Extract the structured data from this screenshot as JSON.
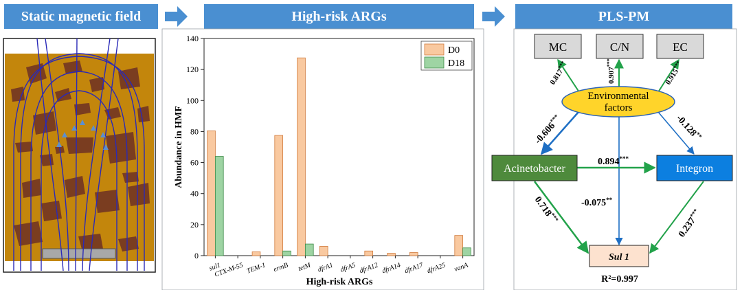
{
  "panels": {
    "left_title": "Static magnetic field",
    "middle_title": "High-risk ARGs",
    "right_title": "PLS-PM"
  },
  "chart_data": {
    "type": "bar",
    "title": "",
    "xlabel": "High-risk ARGs",
    "ylabel": "Abundance in HMF",
    "ylim": [
      0,
      140
    ],
    "yticks": [
      0,
      20,
      40,
      60,
      80,
      100,
      120,
      140
    ],
    "categories": [
      "sul1",
      "CTX-M-55",
      "TEM-1",
      "ermB",
      "tetM",
      "dfrA1",
      "dfrA5",
      "dfrA12",
      "dfrA14",
      "dfrA17",
      "dfrA25",
      "vanA"
    ],
    "series": [
      {
        "name": "D0",
        "color": "#f9c9a0",
        "values": [
          80.5,
          0,
          2.5,
          77.5,
          127.5,
          6,
          0,
          3,
          1.5,
          2,
          0,
          13
        ]
      },
      {
        "name": "D18",
        "color": "#9ed4a3",
        "values": [
          64,
          0,
          0,
          3,
          7.5,
          0,
          0,
          0,
          0,
          0,
          0,
          5
        ]
      }
    ],
    "legend_position": "top-right"
  },
  "plspm": {
    "nodes": {
      "mc": "MC",
      "cn": "C/N",
      "ec": "EC",
      "env_line1": "Environmental",
      "env_line2": "factors",
      "acineto": "Acinetobacter",
      "integron": "Integron",
      "sul1": "Sul 1"
    },
    "colors": {
      "positive": "#22a24a",
      "negative": "#1e6fc4",
      "acineto_fill": "#4e8a3c",
      "integron_fill": "#0c7fe0",
      "env_fill": "#ffd42a",
      "sul1_fill": "#fde2cf",
      "measure_fill": "#d9d9d9"
    },
    "coefs": {
      "env_mc": "0.817",
      "env_cn": "0.907",
      "env_ec": "0.915",
      "env_acineto": "-0.606",
      "env_integron": "-0.128",
      "acineto_integron": "0.894",
      "env_sul1": "-0.075",
      "acineto_sul1": "0.718",
      "integron_sul1": "0.237"
    },
    "stars": {
      "env_mc": "***",
      "env_cn": "***",
      "env_ec": "***",
      "env_acineto": "***",
      "env_integron": "**",
      "acineto_integron": "***",
      "env_sul1": "**",
      "acineto_sul1": "***",
      "integron_sul1": "***"
    },
    "r2": "R²=0.997"
  }
}
